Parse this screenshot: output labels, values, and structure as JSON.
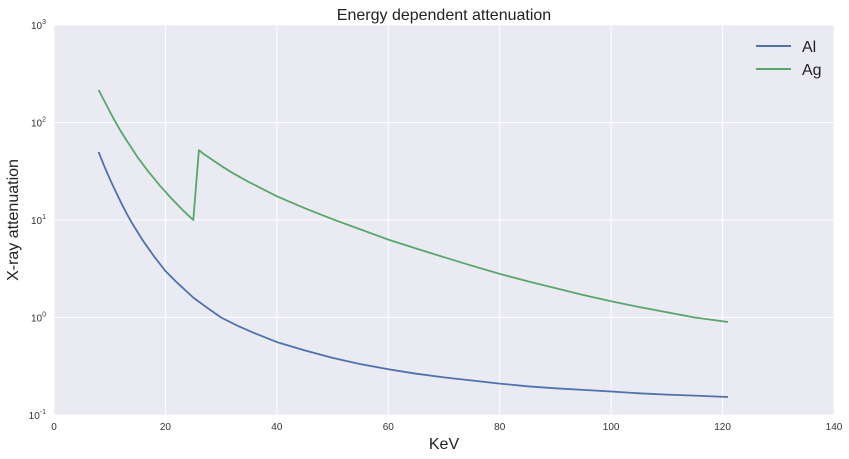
{
  "chart_data": {
    "type": "line",
    "title": "Energy dependent attenuation",
    "xlabel": "KeV",
    "ylabel": "X-ray attenuation",
    "xlim": [
      0,
      140
    ],
    "ylim": [
      0.1,
      1000
    ],
    "yscale": "log",
    "grid": true,
    "background": "#EAEAF2",
    "legend_position": "top-right",
    "x_ticks": [
      0,
      20,
      40,
      60,
      80,
      100,
      120,
      140
    ],
    "y_ticks": [
      {
        "value": 0.1,
        "base": "10",
        "exp": "-1"
      },
      {
        "value": 1,
        "base": "10",
        "exp": "0"
      },
      {
        "value": 10,
        "base": "10",
        "exp": "1"
      },
      {
        "value": 100,
        "base": "10",
        "exp": "2"
      },
      {
        "value": 1000,
        "base": "10",
        "exp": "3"
      }
    ],
    "series": [
      {
        "name": "Al",
        "color": "#4C72B0",
        "points": [
          [
            8,
            50
          ],
          [
            9,
            36
          ],
          [
            10,
            26.5
          ],
          [
            11,
            20
          ],
          [
            12,
            15.2
          ],
          [
            13,
            11.8
          ],
          [
            14,
            9.3
          ],
          [
            16,
            6.1
          ],
          [
            18,
            4.2
          ],
          [
            20,
            3.0
          ],
          [
            22,
            2.3
          ],
          [
            25,
            1.6
          ],
          [
            28,
            1.2
          ],
          [
            30,
            1.0
          ],
          [
            33,
            0.82
          ],
          [
            36,
            0.69
          ],
          [
            40,
            0.56
          ],
          [
            45,
            0.46
          ],
          [
            50,
            0.385
          ],
          [
            55,
            0.333
          ],
          [
            60,
            0.295
          ],
          [
            65,
            0.265
          ],
          [
            70,
            0.243
          ],
          [
            75,
            0.226
          ],
          [
            80,
            0.21
          ],
          [
            85,
            0.197
          ],
          [
            90,
            0.188
          ],
          [
            95,
            0.181
          ],
          [
            100,
            0.174
          ],
          [
            105,
            0.167
          ],
          [
            110,
            0.162
          ],
          [
            115,
            0.158
          ],
          [
            121,
            0.153
          ]
        ]
      },
      {
        "name": "Ag",
        "color": "#55A868",
        "points": [
          [
            8,
            215
          ],
          [
            9,
            168
          ],
          [
            10,
            130
          ],
          [
            11,
            102
          ],
          [
            12,
            81
          ],
          [
            13,
            66
          ],
          [
            14,
            54
          ],
          [
            15,
            44
          ],
          [
            16,
            37
          ],
          [
            17,
            31
          ],
          [
            18,
            26.5
          ],
          [
            19,
            22.5
          ],
          [
            20,
            19.5
          ],
          [
            21,
            16.8
          ],
          [
            22,
            14.7
          ],
          [
            23,
            12.8
          ],
          [
            24,
            11.3
          ],
          [
            25,
            10
          ],
          [
            26,
            52
          ],
          [
            27,
            47
          ],
          [
            28,
            43
          ],
          [
            30,
            36
          ],
          [
            32,
            30.5
          ],
          [
            35,
            24.5
          ],
          [
            40,
            17.5
          ],
          [
            45,
            13.2
          ],
          [
            50,
            10.2
          ],
          [
            55,
            8.0
          ],
          [
            60,
            6.3
          ],
          [
            65,
            5.1
          ],
          [
            70,
            4.15
          ],
          [
            75,
            3.4
          ],
          [
            80,
            2.8
          ],
          [
            85,
            2.35
          ],
          [
            90,
            2.0
          ],
          [
            95,
            1.7
          ],
          [
            100,
            1.47
          ],
          [
            105,
            1.28
          ],
          [
            110,
            1.13
          ],
          [
            115,
            1.0
          ],
          [
            121,
            0.9
          ]
        ]
      }
    ]
  }
}
